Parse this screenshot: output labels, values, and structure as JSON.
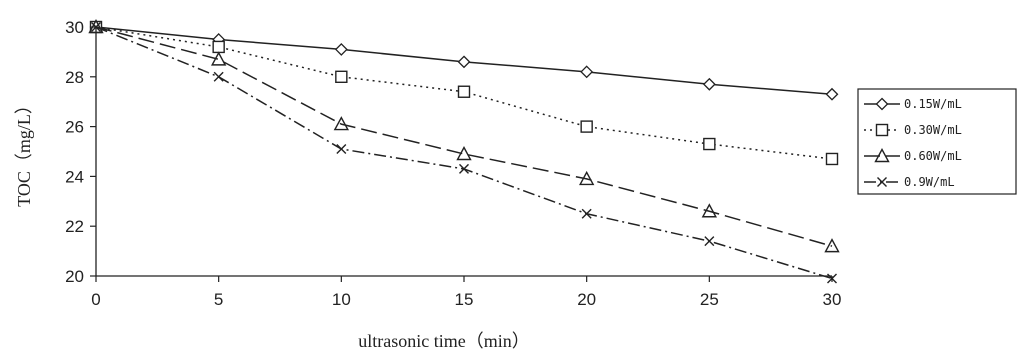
{
  "chart_data": {
    "type": "line",
    "xlabel": "ultrasonic time（min）",
    "ylabel": "TOC（mg/L）",
    "xlim": [
      0,
      30
    ],
    "ylim": [
      20,
      30
    ],
    "x_ticks": [
      0,
      5,
      10,
      15,
      20,
      25,
      30
    ],
    "y_ticks": [
      20,
      22,
      24,
      26,
      28,
      30
    ],
    "grid": false,
    "legend_position": "right",
    "x": [
      0,
      5,
      10,
      15,
      20,
      25,
      30
    ],
    "series": [
      {
        "name": "0.15W/mL",
        "marker": "diamond",
        "dash": "solid",
        "values": [
          30,
          29.5,
          29.1,
          28.6,
          28.2,
          27.7,
          27.3
        ]
      },
      {
        "name": "0.30W/mL",
        "marker": "square",
        "dash": "dotted",
        "values": [
          30,
          29.2,
          28.0,
          27.4,
          26.0,
          25.3,
          24.7
        ]
      },
      {
        "name": "0.60W/mL",
        "marker": "triangle",
        "dash": "long-dash",
        "values": [
          30,
          28.7,
          26.1,
          24.9,
          23.9,
          22.6,
          21.2
        ]
      },
      {
        "name": "0.9W/mL",
        "marker": "x",
        "dash": "dash-dot",
        "values": [
          30,
          28.0,
          25.1,
          24.3,
          22.5,
          21.4,
          19.9
        ]
      }
    ],
    "colors": {
      "line": "#222222",
      "axis": "#222222"
    }
  }
}
